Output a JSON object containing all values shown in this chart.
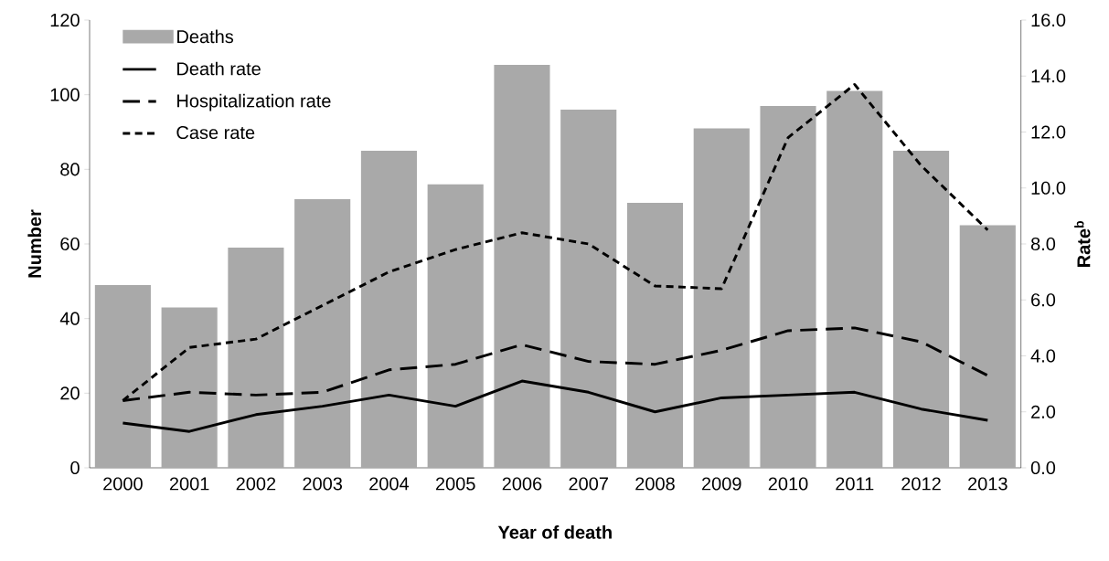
{
  "chart_data": {
    "type": "bar",
    "xlabel": "Year of death",
    "ylabel": "Number",
    "y2label": "Rate$^{b}$",
    "categories": [
      "2000",
      "2001",
      "2002",
      "2003",
      "2004",
      "2005",
      "2006",
      "2007",
      "2008",
      "2009",
      "2010",
      "2011",
      "2012",
      "2013"
    ],
    "series": [
      {
        "name": "Deaths",
        "color": "#a9a9a9",
        "values": [
          49,
          43,
          59,
          72,
          85,
          76,
          108,
          96,
          71,
          91,
          97,
          101,
          85,
          65
        ]
      },
      {
        "name": "Death rate",
        "type": "line",
        "axis": "y2",
        "color": "#000000",
        "line_style": "solid",
        "values": [
          1.6,
          1.3,
          1.9,
          2.2,
          2.6,
          2.2,
          3.1,
          2.7,
          2.0,
          2.5,
          2.6,
          2.7,
          2.1,
          1.7
        ]
      },
      {
        "name": "Hospitalization rate",
        "type": "line",
        "axis": "y2",
        "color": "#000000",
        "line_style": "dashed",
        "values": [
          2.4,
          2.7,
          2.6,
          2.7,
          3.5,
          3.7,
          4.4,
          3.8,
          3.7,
          4.2,
          4.9,
          5.0,
          4.5,
          3.3
        ]
      },
      {
        "name": "Case rate",
        "type": "line",
        "axis": "y2",
        "color": "#000000",
        "line_style": "dotted",
        "values": [
          2.4,
          4.3,
          4.6,
          5.8,
          7.0,
          7.8,
          8.4,
          8.0,
          6.5,
          6.4,
          11.8,
          13.7,
          10.8,
          8.5
        ]
      }
    ],
    "ylim": [
      0,
      120
    ],
    "yticks": [
      0,
      20,
      40,
      60,
      80,
      100,
      120
    ],
    "y2lim": [
      0,
      16
    ],
    "y2ticks": [
      {
        "value": 0,
        "label": "0.0"
      },
      {
        "value": 2,
        "label": "2.0"
      },
      {
        "value": 4,
        "label": "4.0"
      },
      {
        "value": 6,
        "label": "6.0"
      },
      {
        "value": 8,
        "label": "8.0"
      },
      {
        "value": 10,
        "label": "10.0"
      },
      {
        "value": 12,
        "label": "12.0"
      },
      {
        "value": 14,
        "label": "14.0"
      },
      {
        "value": 16,
        "label": "16.0"
      }
    ],
    "legend": "top left"
  }
}
